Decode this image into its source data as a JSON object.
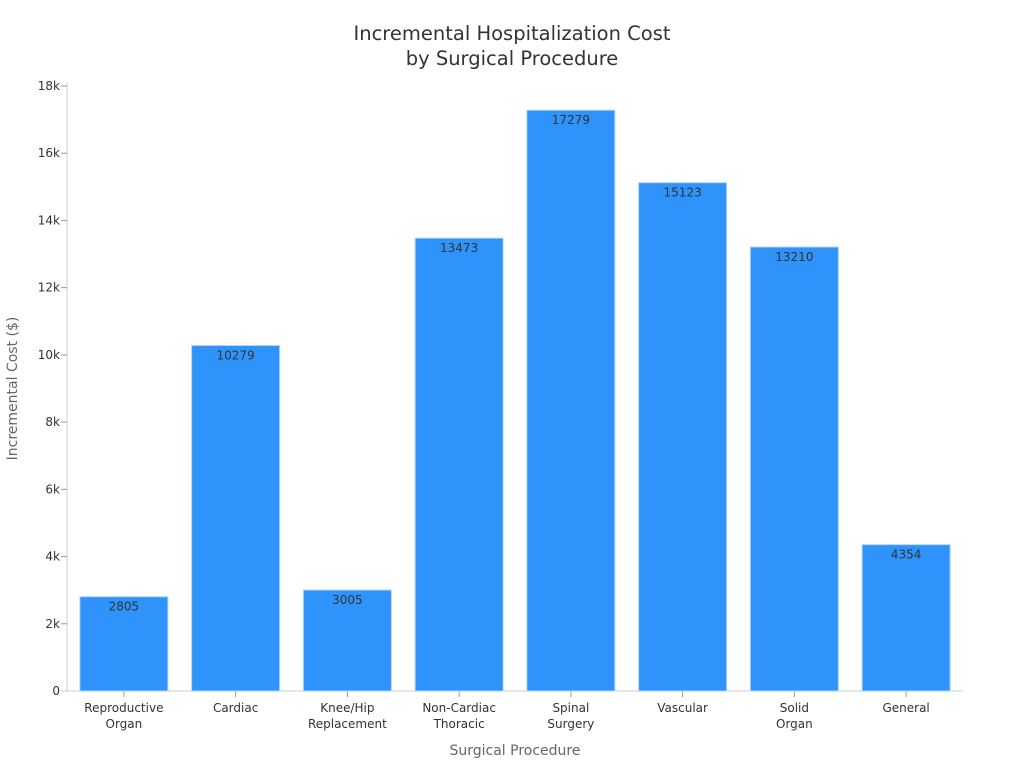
{
  "chart_data": {
    "type": "bar",
    "title": [
      "Incremental Hospitalization Cost",
      "by Surgical Procedure"
    ],
    "xlabel": "Surgical Procedure",
    "ylabel": "Incremental Cost ($)",
    "categories": [
      [
        "Reproductive",
        "Organ"
      ],
      [
        "Cardiac"
      ],
      [
        "Knee/Hip",
        "Replacement"
      ],
      [
        "Non-Cardiac",
        "Thoracic"
      ],
      [
        "Spinal",
        "Surgery"
      ],
      [
        "Vascular"
      ],
      [
        "Solid",
        "Organ"
      ],
      [
        "General"
      ]
    ],
    "values": [
      2805,
      10279,
      3005,
      13473,
      17279,
      15123,
      13210,
      4354
    ],
    "ylim": [
      0,
      18000
    ],
    "yticks": [
      0,
      2000,
      4000,
      6000,
      8000,
      10000,
      12000,
      14000,
      16000,
      18000
    ],
    "ytick_labels": [
      "0",
      "2k",
      "4k",
      "6k",
      "8k",
      "10k",
      "12k",
      "14k",
      "16k",
      "18k"
    ],
    "grid": false,
    "bar_color": "#2e93fa",
    "bar_edge_color": "#b3d4f5"
  }
}
